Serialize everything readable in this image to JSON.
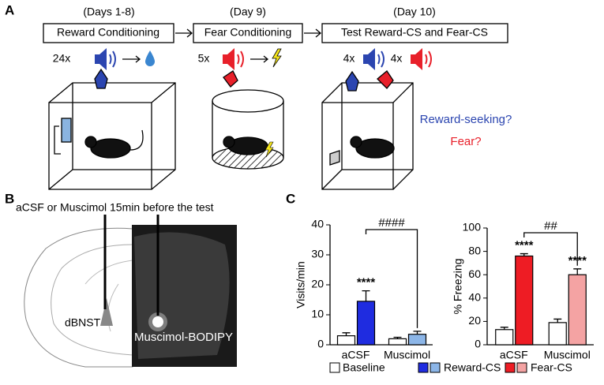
{
  "panel_a": {
    "label": "A",
    "steps": [
      {
        "day": "(Days 1-8)",
        "title": "Reward Conditioning"
      },
      {
        "day": "(Day 9)",
        "title": "Fear Conditioning"
      },
      {
        "day": "(Day 10)",
        "title": "Test Reward-CS and Fear-CS"
      }
    ],
    "counts": [
      "24x",
      "5x",
      "4x",
      "4x"
    ],
    "questions": [
      "Reward-seeking?",
      "Fear?"
    ]
  },
  "panel_b": {
    "label": "B",
    "caption": "aCSF or Muscimol 15min before the test",
    "region_label": "dBNST",
    "image_label": "Muscimol-BODIPY"
  },
  "panel_c": {
    "label": "C"
  },
  "chart_data": [
    {
      "type": "bar",
      "ylabel": "Visits/min",
      "categories": [
        "aCSF",
        "Muscimol"
      ],
      "series": [
        {
          "name": "Baseline",
          "color": "#ffffff",
          "values": [
            3,
            2
          ],
          "errors": [
            1,
            0.5
          ]
        },
        {
          "name": "Reward-CS",
          "color": [
            "#1f2ce0",
            "#8cb6e8"
          ],
          "values": [
            14.5,
            3.5
          ],
          "errors": [
            3.5,
            1
          ]
        }
      ],
      "ylim": [
        0,
        40
      ],
      "yticks": [
        0,
        10,
        20,
        30,
        40
      ],
      "significance": [
        "****"
      ],
      "comparison": "####"
    },
    {
      "type": "bar",
      "ylabel": "% Freezing",
      "categories": [
        "aCSF",
        "Muscimol"
      ],
      "series": [
        {
          "name": "Baseline",
          "color": "#ffffff",
          "values": [
            13,
            19
          ],
          "errors": [
            2,
            3
          ]
        },
        {
          "name": "Fear-CS",
          "color": [
            "#ee1c24",
            "#f4a3a3"
          ],
          "values": [
            76,
            60
          ],
          "errors": [
            2,
            5
          ]
        }
      ],
      "ylim": [
        0,
        100
      ],
      "yticks": [
        0,
        20,
        40,
        60,
        80,
        100
      ],
      "significance": [
        "****",
        "****"
      ],
      "comparison": "##"
    }
  ]
}
